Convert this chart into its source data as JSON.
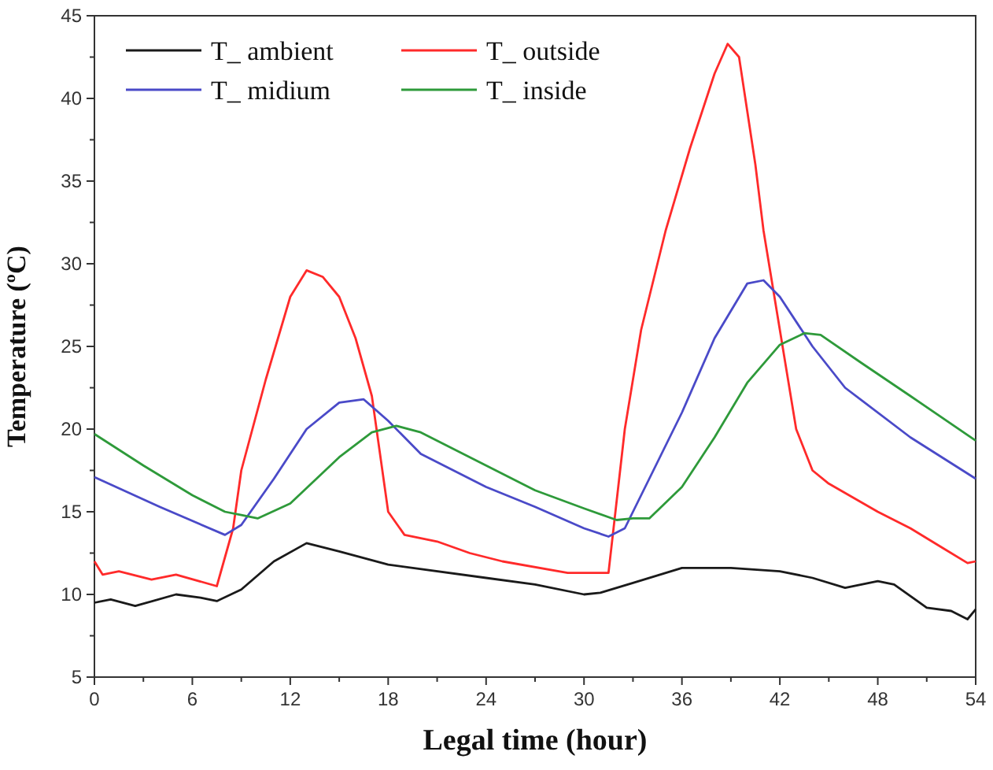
{
  "chart_data": {
    "type": "line",
    "xlabel": "Legal time (hour)",
    "ylabel": "Temperature (ºC)",
    "xlim": [
      0,
      54
    ],
    "ylim": [
      5,
      45
    ],
    "xticks": [
      0,
      {
        "value": 3,
        "label": null
      },
      6,
      {
        "value": 9,
        "label": null
      },
      12,
      {
        "value": 15,
        "label": null
      },
      18,
      {
        "value": 21,
        "label": null
      },
      24,
      {
        "value": 27,
        "label": null
      },
      30,
      {
        "value": 33,
        "label": null
      },
      36,
      {
        "value": 39,
        "label": null
      },
      42,
      {
        "value": 45,
        "label": null
      },
      48,
      {
        "value": 51,
        "label": null
      },
      54
    ],
    "yticks": [
      5,
      {
        "value": 7.5,
        "label": null
      },
      10,
      {
        "value": 12.5,
        "label": null
      },
      15,
      {
        "value": 17.5,
        "label": null
      },
      20,
      {
        "value": 22.5,
        "label": null
      },
      25,
      {
        "value": 27.5,
        "label": null
      },
      30,
      {
        "value": 32.5,
        "label": null
      },
      35,
      {
        "value": 37.5,
        "label": null
      },
      40,
      {
        "value": 42.5,
        "label": null
      },
      45
    ],
    "legend": "top left",
    "grid": false,
    "marker": "none",
    "line_style": "solid",
    "series": [
      {
        "name": "T_ ambient",
        "color": "#1a1a1a",
        "x": [
          0,
          1,
          2.5,
          5,
          6.5,
          7.5,
          9,
          11,
          13,
          15,
          18,
          24,
          27,
          30,
          31,
          33,
          36,
          39,
          42,
          44,
          46,
          48,
          49,
          51,
          52.5,
          53.5,
          54
        ],
        "values": [
          9.5,
          9.7,
          9.3,
          10,
          9.8,
          9.6,
          10.3,
          12,
          13.1,
          12.6,
          11.8,
          11,
          10.6,
          10,
          10.1,
          10.7,
          11.6,
          11.6,
          11.4,
          11,
          10.4,
          10.8,
          10.6,
          9.2,
          9,
          8.5,
          9.1
        ]
      },
      {
        "name": "T_ outside",
        "color": "#ff2a2a",
        "x": [
          0,
          0.5,
          1.5,
          3.5,
          5,
          7.5,
          8.5,
          9,
          10.5,
          12,
          13,
          14,
          15,
          16,
          17,
          18,
          19,
          21,
          23,
          25,
          29,
          31.5,
          32.5,
          33.5,
          35,
          36.5,
          38,
          38.8,
          39.5,
          40.5,
          41,
          42,
          43,
          44,
          45,
          48,
          50,
          52,
          53.5,
          54
        ],
        "values": [
          12,
          11.2,
          11.4,
          10.9,
          11.2,
          10.5,
          14,
          17.5,
          23,
          28,
          29.6,
          29.2,
          28,
          25.5,
          22,
          15,
          13.6,
          13.2,
          12.5,
          12,
          11.3,
          11.3,
          20,
          26,
          32,
          37,
          41.5,
          43.3,
          42.5,
          36,
          32,
          26,
          20,
          17.5,
          16.7,
          15,
          14,
          12.8,
          11.9,
          12
        ]
      },
      {
        "name": "T_ midium",
        "color": "#4a4ac8",
        "x": [
          0,
          4,
          8,
          9,
          11,
          13,
          15,
          16.5,
          18,
          20,
          24,
          27,
          30,
          31.5,
          32.5,
          34,
          36,
          38,
          40,
          41,
          42,
          44,
          46,
          50,
          54
        ],
        "values": [
          17.1,
          15.3,
          13.6,
          14.2,
          17,
          20,
          21.6,
          21.8,
          20.5,
          18.5,
          16.5,
          15.3,
          14,
          13.5,
          14,
          17,
          21,
          25.5,
          28.8,
          29,
          28,
          25,
          22.5,
          19.5,
          17
        ]
      },
      {
        "name": "T_ inside",
        "color": "#2e9a3a",
        "x": [
          0,
          3,
          6,
          8,
          9,
          10,
          12,
          15,
          17,
          18.5,
          20,
          24,
          27,
          30,
          32,
          33,
          34,
          36,
          38,
          40,
          42,
          43.5,
          44.5,
          47,
          50,
          54
        ],
        "values": [
          19.7,
          17.8,
          16,
          15,
          14.8,
          14.6,
          15.5,
          18.3,
          19.8,
          20.2,
          19.8,
          17.8,
          16.3,
          15.2,
          14.5,
          14.6,
          14.6,
          16.5,
          19.5,
          22.8,
          25.1,
          25.8,
          25.7,
          24,
          22,
          19.3
        ]
      }
    ]
  }
}
